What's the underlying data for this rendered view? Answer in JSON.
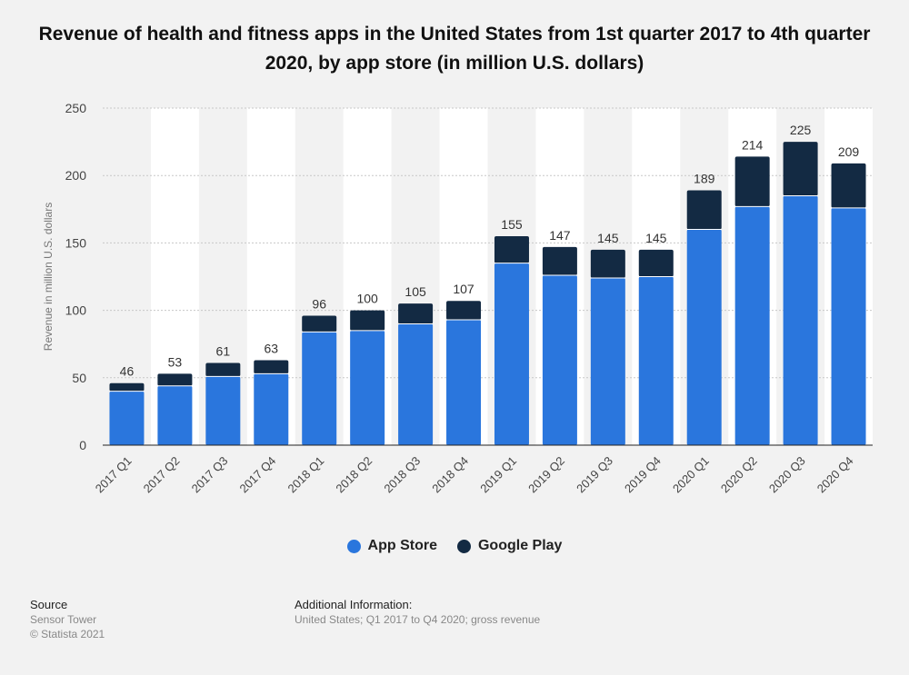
{
  "chart_title": "Revenue of health and fitness apps in the United States from 1st quarter 2017 to 4th quarter 2020, by app store (in million U.S. dollars)",
  "source": {
    "heading": "Source",
    "line1": "Sensor Tower",
    "line2": "© Statista 2021"
  },
  "additional_info": {
    "heading": "Additional Information:",
    "text": "United States; Q1 2017 to Q4 2020; gross revenue"
  },
  "colors": {
    "app_store": "#2a76dd",
    "google_play": "#132a43",
    "alt_band": "#ffffff",
    "background": "#f2f2f2"
  },
  "chart_data": {
    "type": "bar",
    "stacked": true,
    "title": "Revenue of health and fitness apps in the United States from 1st quarter 2017 to 4th quarter 2020, by app store (in million U.S. dollars)",
    "xlabel": "",
    "ylabel": "Revenue in million U.S. dollars",
    "ylim": [
      0,
      250
    ],
    "yticks": [
      0,
      50,
      100,
      150,
      200,
      250
    ],
    "grid": true,
    "legend_position": "bottom",
    "categories": [
      "2017 Q1",
      "2017 Q2",
      "2017 Q3",
      "2017 Q4",
      "2018 Q1",
      "2018 Q2",
      "2018 Q3",
      "2018 Q4",
      "2019 Q1",
      "2019 Q2",
      "2019 Q3",
      "2019 Q4",
      "2020 Q1",
      "2020 Q2",
      "2020 Q3",
      "2020 Q4"
    ],
    "series": [
      {
        "name": "App Store",
        "values": [
          40,
          44,
          51,
          53,
          84,
          85,
          90,
          93,
          135,
          126,
          124,
          125,
          160,
          177,
          185,
          176
        ]
      },
      {
        "name": "Google Play",
        "values": [
          6,
          9,
          10,
          10,
          12,
          15,
          15,
          14,
          20,
          21,
          21,
          20,
          29,
          37,
          40,
          33
        ]
      }
    ],
    "totals": [
      46,
      53,
      61,
      63,
      96,
      100,
      105,
      107,
      155,
      147,
      145,
      145,
      189,
      214,
      225,
      209
    ]
  }
}
